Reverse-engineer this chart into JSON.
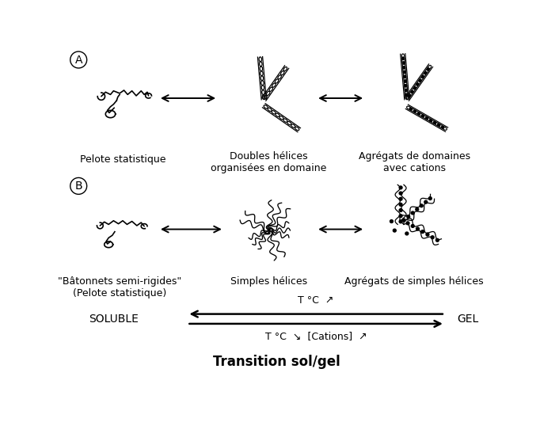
{
  "title": "Transition sol/gel",
  "bg_color": "#ffffff",
  "label_A": "A",
  "label_B": "B",
  "text_pelote": "Pelote statistique",
  "text_doubles_helices": "Doubles hélices\norganisées en domaine",
  "text_agregats_domaines": "Agrégats de domaines\navec cations",
  "text_batonnets": "\"Bâtonnets semi-rigides\"\n(Pelote statistique)",
  "text_simples_helices": "Simples hélices",
  "text_agregats_simples": "Agrégats de simples hélices",
  "text_soluble": "SOLUBLE",
  "text_gel": "GEL",
  "title_fontsize": 12,
  "label_fontsize": 10,
  "caption_fontsize": 9
}
